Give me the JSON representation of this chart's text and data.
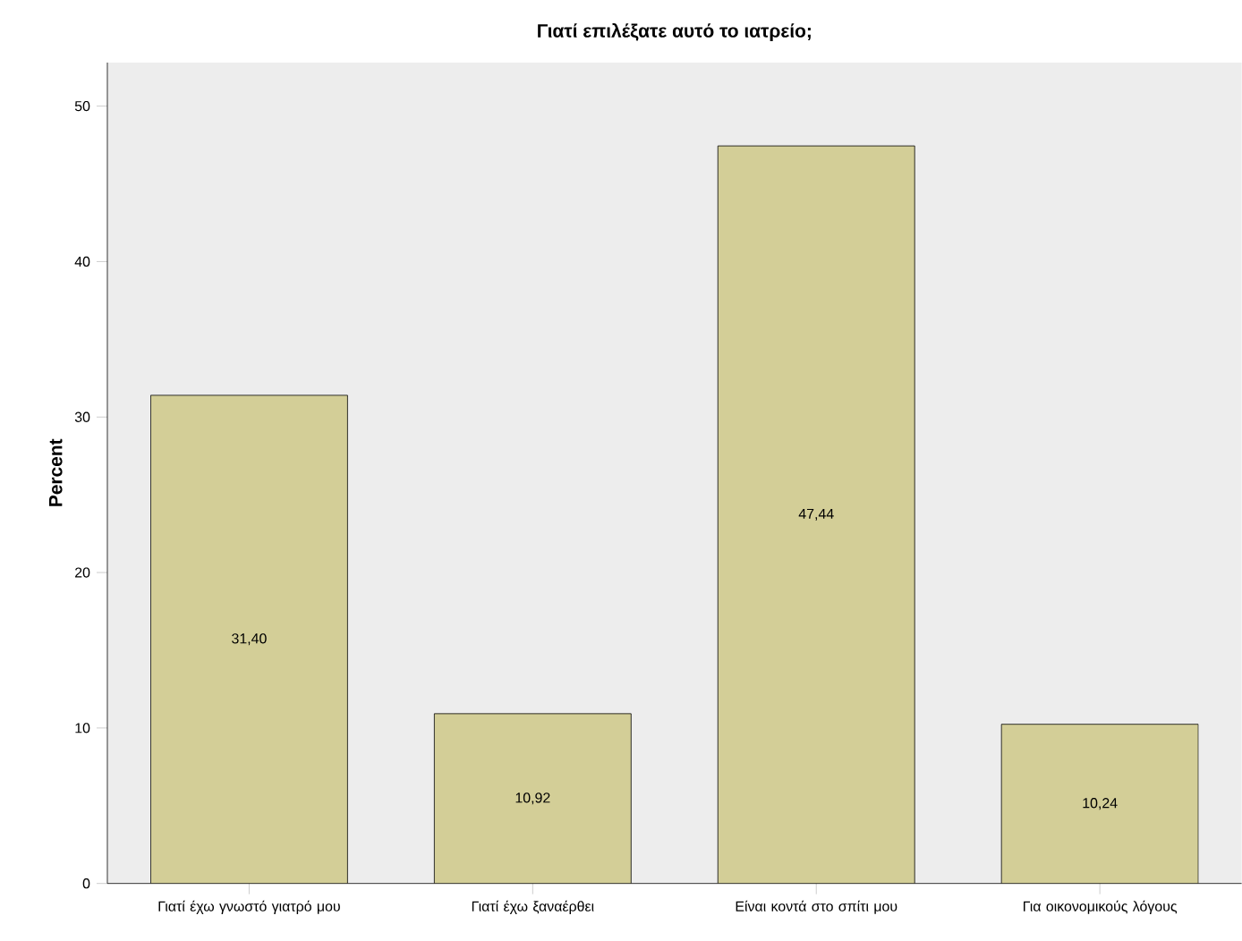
{
  "chart_data": {
    "type": "bar",
    "title": "Γιατί επιλέξατε αυτό το ιατρείο;",
    "ylabel": "Percent",
    "categories": [
      "Γιατί έχω γνωστό γιατρό μου",
      "Γιατί έχω ξαναέρθει",
      "Είναι κοντά στο σπίτι μου",
      "Για οικονομικούς λόγους"
    ],
    "values": [
      31.4,
      10.92,
      47.44,
      10.24
    ],
    "value_labels": [
      "31,40",
      "10,92",
      "47,44",
      "10,24"
    ],
    "color": "#d3ce97",
    "ylim": [
      0,
      52.8
    ],
    "yticks": [
      0,
      10,
      20,
      30,
      40,
      50
    ]
  }
}
